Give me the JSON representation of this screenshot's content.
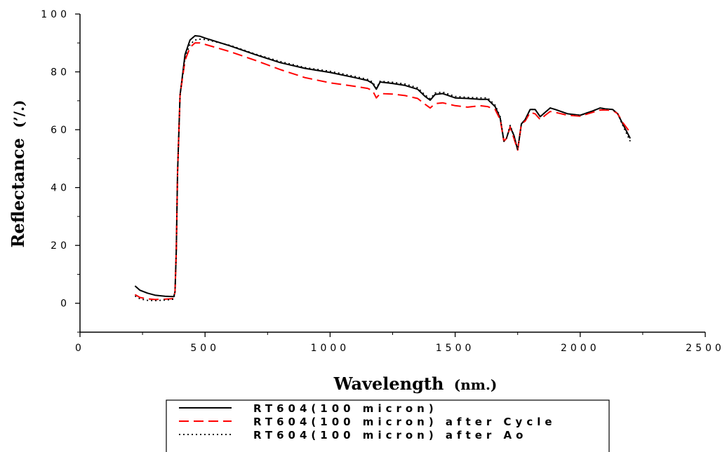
{
  "chart_data": {
    "type": "line",
    "xlabel_main": "Wavelength",
    "xlabel_unit": "(nm.)",
    "ylabel_main": "Reflectance",
    "ylabel_unit": "(’/.)",
    "xlim": [
      0,
      2500
    ],
    "ylim": [
      -10,
      100
    ],
    "x_ticks": [
      0,
      500,
      1000,
      1500,
      2000,
      2500
    ],
    "x_tick_labels": [
      "0",
      "500",
      "1000",
      "1500",
      "2000",
      "2500"
    ],
    "y_ticks": [
      0,
      20,
      40,
      60,
      80,
      100
    ],
    "y_tick_labels": [
      "0",
      "20",
      "40",
      "60",
      "80",
      "100"
    ],
    "grid": false,
    "legend_position": "bottom",
    "series": [
      {
        "name": "RT604(100 micron)",
        "color": "#000000",
        "style": "solid",
        "x": [
          220,
          240,
          270,
          300,
          340,
          375,
          380,
          385,
          390,
          400,
          420,
          440,
          460,
          480,
          500,
          600,
          700,
          800,
          900,
          1000,
          1100,
          1150,
          1170,
          1185,
          1200,
          1250,
          1300,
          1350,
          1380,
          1400,
          1420,
          1450,
          1500,
          1550,
          1600,
          1630,
          1660,
          1680,
          1695,
          1705,
          1720,
          1735,
          1750,
          1765,
          1780,
          1800,
          1820,
          1840,
          1860,
          1880,
          1900,
          1950,
          2000,
          2050,
          2080,
          2100,
          2130,
          2150,
          2170,
          2200
        ],
        "y": [
          6,
          4.5,
          3.5,
          2.8,
          2.4,
          2.3,
          4,
          18,
          45,
          72,
          86,
          91,
          92.5,
          92.3,
          91.7,
          89,
          86,
          83.2,
          81.2,
          79.8,
          78,
          77,
          76,
          74,
          76.5,
          76,
          75.3,
          74,
          71.5,
          70.2,
          72.2,
          72.5,
          71,
          70.8,
          70.5,
          70.5,
          68,
          64,
          56,
          57,
          61,
          58,
          53,
          62,
          63.5,
          67,
          67,
          64.5,
          66,
          67.5,
          67,
          65.5,
          65,
          66.5,
          67.5,
          67.2,
          67,
          65.5,
          62,
          57
        ]
      },
      {
        "name": "RT604(100 micron) after Cycle",
        "color": "#ff0000",
        "style": "dashed",
        "x": [
          220,
          240,
          270,
          300,
          340,
          375,
          380,
          385,
          390,
          400,
          420,
          440,
          460,
          480,
          500,
          600,
          700,
          800,
          900,
          1000,
          1100,
          1150,
          1170,
          1185,
          1200,
          1250,
          1300,
          1350,
          1380,
          1400,
          1420,
          1450,
          1500,
          1550,
          1600,
          1630,
          1660,
          1680,
          1695,
          1705,
          1720,
          1735,
          1750,
          1765,
          1780,
          1800,
          1820,
          1840,
          1860,
          1880,
          1900,
          1950,
          2000,
          2050,
          2080,
          2100,
          2130,
          2150,
          2170,
          2200
        ],
        "y": [
          3,
          2,
          1.5,
          1.3,
          1.4,
          1.6,
          4,
          18,
          45,
          72,
          84,
          88.5,
          90,
          90,
          89.5,
          87,
          84,
          80.8,
          78,
          76.2,
          75,
          74.3,
          73.5,
          71,
          72.5,
          72.3,
          71.8,
          70.8,
          68.8,
          67.5,
          69,
          69.3,
          68.3,
          67.8,
          68.3,
          68,
          67,
          63.5,
          56,
          57,
          61,
          57,
          53,
          62,
          63,
          66,
          65.5,
          63.5,
          65,
          66.3,
          66,
          65,
          64.7,
          66,
          66.8,
          66.8,
          66.7,
          65.5,
          62.5,
          59
        ]
      },
      {
        "name": "RT604(100 micron) after Ao",
        "color": "#000000",
        "style": "dotted",
        "x": [
          220,
          240,
          270,
          300,
          340,
          375,
          380,
          385,
          390,
          400,
          420,
          440,
          460,
          480,
          500,
          600,
          700,
          800,
          900,
          1000,
          1100,
          1150,
          1170,
          1185,
          1200,
          1250,
          1300,
          1350,
          1380,
          1400,
          1420,
          1450,
          1500,
          1550,
          1600,
          1630,
          1660,
          1680,
          1695,
          1705,
          1720,
          1735,
          1750,
          1765,
          1780,
          1800,
          1820,
          1840,
          1860,
          1880,
          1900,
          1950,
          2000,
          2050,
          2080,
          2100,
          2130,
          2150,
          2170,
          2200
        ],
        "y": [
          2.5,
          1.5,
          1,
          0.9,
          1.1,
          1.4,
          4,
          18,
          45,
          72,
          85,
          89.5,
          91,
          91.3,
          91.2,
          89.2,
          86.2,
          83.6,
          81.5,
          80.2,
          78.4,
          77.4,
          76.5,
          74.3,
          76.8,
          76.4,
          75.8,
          74.5,
          72,
          70.7,
          72.7,
          73,
          71.5,
          71.2,
          71,
          71,
          68.5,
          64.5,
          56,
          57,
          61.5,
          58,
          53,
          62,
          63.5,
          67,
          67,
          64.5,
          66,
          67.5,
          67,
          65.5,
          65,
          66.5,
          67.5,
          67.2,
          67,
          65.5,
          61.5,
          56
        ]
      }
    ]
  }
}
